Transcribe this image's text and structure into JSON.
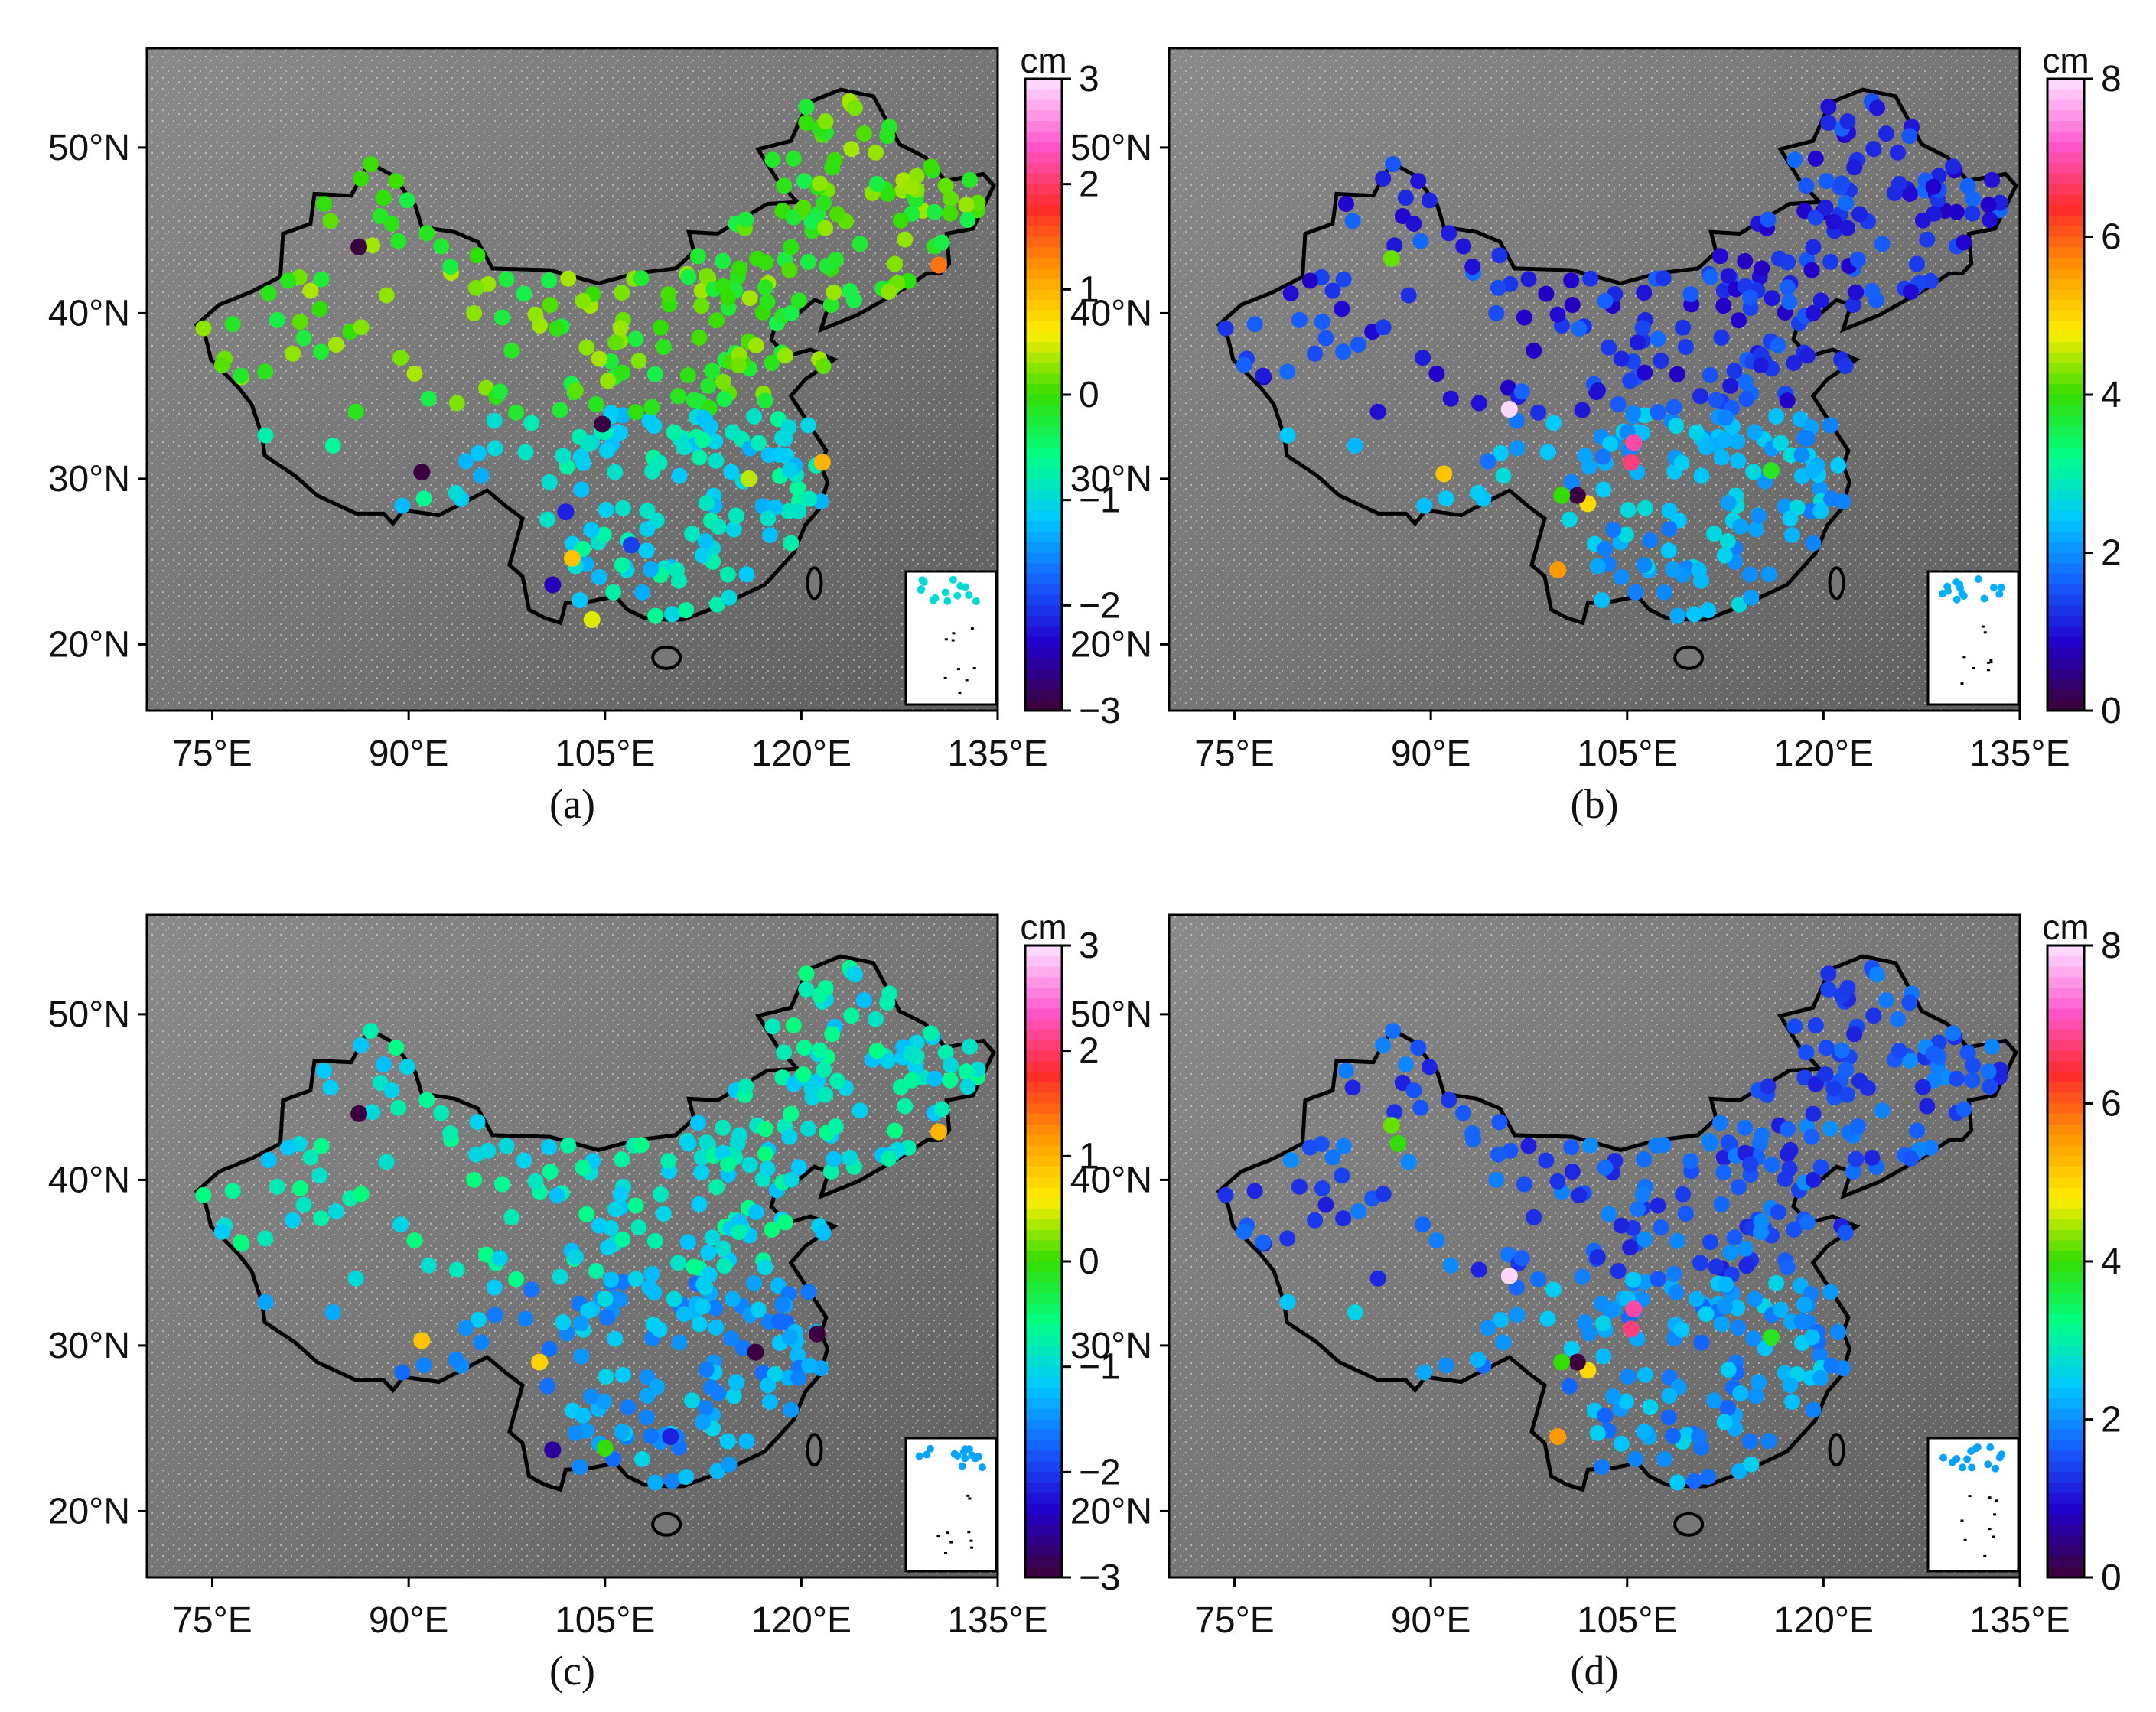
{
  "figure": {
    "lon_ticks": [
      "75°E",
      "90°E",
      "105°E",
      "120°E",
      "135°E"
    ],
    "lat_ticks": [
      "20°N",
      "30°N",
      "40°N",
      "50°N"
    ],
    "extent": {
      "lon": [
        70,
        135
      ],
      "lat": [
        16,
        56
      ]
    }
  },
  "colormap": [
    "#3a003f",
    "#2200cc",
    "#1560ff",
    "#00c8ff",
    "#00ff88",
    "#33dd00",
    "#ffee00",
    "#ff9900",
    "#ff2a2a",
    "#ff55cc",
    "#ffd8ff"
  ],
  "chart_data": [
    {
      "type": "scatter",
      "panel_label": "(a)",
      "colorbar": {
        "unit": "cm",
        "ticks": [
          "3",
          "2",
          "1",
          "0",
          "−1",
          "−2",
          "−3"
        ],
        "range": [
          -3,
          3
        ]
      },
      "points": [
        {
          "lon": 86.2,
          "lat": 44.0,
          "v": -3.0
        },
        {
          "lon": 104.8,
          "lat": 33.3,
          "v": -3.0
        },
        {
          "lon": 91.0,
          "lat": 30.4,
          "v": -3.0
        },
        {
          "lon": 101.0,
          "lat": 23.6,
          "v": -2.5
        },
        {
          "lon": 102.0,
          "lat": 28.0,
          "v": -2.2
        },
        {
          "lon": 107.0,
          "lat": 26.0,
          "v": -2.0
        },
        {
          "lon": 121.6,
          "lat": 31.0,
          "v": 1.0
        },
        {
          "lon": 130.5,
          "lat": 42.9,
          "v": 1.4
        },
        {
          "lon": 102.5,
          "lat": 25.2,
          "v": 0.9
        },
        {
          "lon": 104.0,
          "lat": 21.5,
          "v": 0.5
        },
        {
          "lon": 116.0,
          "lat": 30.0,
          "v": 0.4
        }
      ],
      "fill": {
        "v_north": 0.0,
        "v_south": -1.0
      }
    },
    {
      "type": "scatter",
      "panel_label": "(b)",
      "colorbar": {
        "unit": "cm",
        "ticks": [
          "8",
          "6",
          "4",
          "2",
          "0"
        ],
        "range": [
          0,
          8
        ]
      },
      "points": [
        {
          "lon": 96.0,
          "lat": 34.2,
          "v": 8.0
        },
        {
          "lon": 105.5,
          "lat": 32.2,
          "v": 7.0
        },
        {
          "lon": 105.3,
          "lat": 31.0,
          "v": 6.8
        },
        {
          "lon": 91.0,
          "lat": 30.3,
          "v": 5.2
        },
        {
          "lon": 102.0,
          "lat": 28.5,
          "v": 5.0
        },
        {
          "lon": 99.7,
          "lat": 24.5,
          "v": 5.6
        },
        {
          "lon": 101.2,
          "lat": 29.0,
          "v": 0.0
        },
        {
          "lon": 100.0,
          "lat": 29.0,
          "v": 4.0
        },
        {
          "lon": 87.0,
          "lat": 43.3,
          "v": 4.2
        },
        {
          "lon": 116.0,
          "lat": 30.5,
          "v": 3.8
        }
      ],
      "fill": {
        "v_north": 1.2,
        "v_south": 2.2
      }
    },
    {
      "type": "scatter",
      "panel_label": "(c)",
      "colorbar": {
        "unit": "cm",
        "ticks": [
          "3",
          "2",
          "1",
          "0",
          "−1",
          "−2",
          "−3"
        ],
        "range": [
          -3,
          3
        ]
      },
      "points": [
        {
          "lon": 86.2,
          "lat": 44.0,
          "v": -3.0
        },
        {
          "lon": 116.5,
          "lat": 29.6,
          "v": -3.0
        },
        {
          "lon": 121.2,
          "lat": 30.7,
          "v": -3.0
        },
        {
          "lon": 91.0,
          "lat": 30.3,
          "v": 0.9
        },
        {
          "lon": 100.0,
          "lat": 29.0,
          "v": 0.8
        },
        {
          "lon": 130.5,
          "lat": 42.9,
          "v": 1.0
        },
        {
          "lon": 105.0,
          "lat": 23.8,
          "v": 0.0
        },
        {
          "lon": 101.0,
          "lat": 23.7,
          "v": -2.6
        },
        {
          "lon": 110.0,
          "lat": 24.5,
          "v": -2.2
        }
      ],
      "fill": {
        "v_north": -0.9,
        "v_south": -1.4
      }
    },
    {
      "type": "scatter",
      "panel_label": "(d)",
      "colorbar": {
        "unit": "cm",
        "ticks": [
          "8",
          "6",
          "4",
          "2",
          "0"
        ],
        "range": [
          0,
          8
        ]
      },
      "points": [
        {
          "lon": 96.0,
          "lat": 34.2,
          "v": 8.0
        },
        {
          "lon": 105.5,
          "lat": 32.2,
          "v": 7.0
        },
        {
          "lon": 105.3,
          "lat": 31.0,
          "v": 6.8
        },
        {
          "lon": 102.0,
          "lat": 28.5,
          "v": 5.0
        },
        {
          "lon": 99.7,
          "lat": 24.5,
          "v": 5.6
        },
        {
          "lon": 101.2,
          "lat": 29.0,
          "v": 0.0
        },
        {
          "lon": 100.0,
          "lat": 29.0,
          "v": 4.0
        },
        {
          "lon": 87.0,
          "lat": 43.3,
          "v": 4.2
        },
        {
          "lon": 87.5,
          "lat": 42.2,
          "v": 4.0
        },
        {
          "lon": 116.0,
          "lat": 30.5,
          "v": 3.8
        }
      ],
      "fill": {
        "v_north": 1.5,
        "v_south": 2.1
      }
    }
  ]
}
